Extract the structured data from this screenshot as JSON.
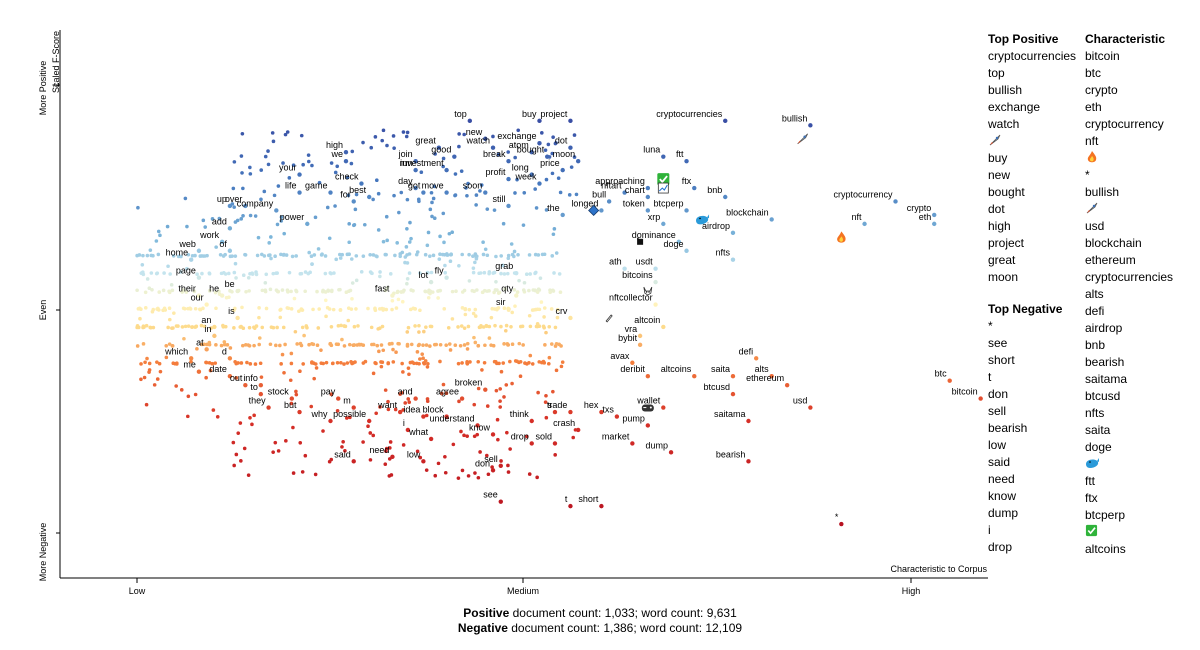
{
  "chart_data": {
    "type": "scatter",
    "title": "",
    "y_axis": {
      "label": "Scaled F-Score",
      "ticks": [
        "More Positive",
        "Even",
        "More Negative"
      ],
      "top_value": "1"
    },
    "x_axis": {
      "label": "Characteristic to Corpus",
      "ticks": [
        "Low",
        "Medium",
        "High"
      ]
    },
    "xlim": [
      0,
      1
    ],
    "ylim": [
      0,
      1
    ],
    "labeled_terms": [
      {
        "term": "top",
        "x": 0.43,
        "y": 0.92
      },
      {
        "term": "buy",
        "x": 0.52,
        "y": 0.92
      },
      {
        "term": "project",
        "x": 0.56,
        "y": 0.92
      },
      {
        "term": "new",
        "x": 0.45,
        "y": 0.88
      },
      {
        "term": "exchange",
        "x": 0.52,
        "y": 0.87
      },
      {
        "term": "watch",
        "x": 0.46,
        "y": 0.86
      },
      {
        "term": "dot",
        "x": 0.56,
        "y": 0.86
      },
      {
        "term": "atom",
        "x": 0.51,
        "y": 0.85
      },
      {
        "term": "bought",
        "x": 0.53,
        "y": 0.84
      },
      {
        "term": "great",
        "x": 0.39,
        "y": 0.86
      },
      {
        "term": "high",
        "x": 0.27,
        "y": 0.85
      },
      {
        "term": "good",
        "x": 0.41,
        "y": 0.84
      },
      {
        "term": "join",
        "x": 0.36,
        "y": 0.83
      },
      {
        "term": "we",
        "x": 0.27,
        "y": 0.83
      },
      {
        "term": "break",
        "x": 0.48,
        "y": 0.83
      },
      {
        "term": "moon",
        "x": 0.57,
        "y": 0.83
      },
      {
        "term": "investment",
        "x": 0.4,
        "y": 0.81
      },
      {
        "term": "run",
        "x": 0.36,
        "y": 0.81
      },
      {
        "term": "long",
        "x": 0.51,
        "y": 0.8
      },
      {
        "term": "price",
        "x": 0.55,
        "y": 0.81
      },
      {
        "term": "your",
        "x": 0.21,
        "y": 0.8
      },
      {
        "term": "profit",
        "x": 0.48,
        "y": 0.79
      },
      {
        "term": "check",
        "x": 0.29,
        "y": 0.78
      },
      {
        "term": "week",
        "x": 0.52,
        "y": 0.78
      },
      {
        "term": "life",
        "x": 0.21,
        "y": 0.76
      },
      {
        "term": "game",
        "x": 0.25,
        "y": 0.76
      },
      {
        "term": "day",
        "x": 0.36,
        "y": 0.77
      },
      {
        "term": "got",
        "x": 0.37,
        "y": 0.76
      },
      {
        "term": "move",
        "x": 0.4,
        "y": 0.76
      },
      {
        "term": "soon",
        "x": 0.45,
        "y": 0.76
      },
      {
        "term": "best",
        "x": 0.3,
        "y": 0.75
      },
      {
        "term": "for",
        "x": 0.28,
        "y": 0.74
      },
      {
        "term": "still",
        "x": 0.48,
        "y": 0.73
      },
      {
        "term": "up",
        "x": 0.12,
        "y": 0.73
      },
      {
        "term": "over",
        "x": 0.14,
        "y": 0.73
      },
      {
        "term": "company",
        "x": 0.18,
        "y": 0.72
      },
      {
        "term": "the",
        "x": 0.55,
        "y": 0.71
      },
      {
        "term": "power",
        "x": 0.22,
        "y": 0.69
      },
      {
        "term": "add",
        "x": 0.12,
        "y": 0.68
      },
      {
        "term": "work",
        "x": 0.11,
        "y": 0.65
      },
      {
        "term": "of",
        "x": 0.12,
        "y": 0.63
      },
      {
        "term": "web",
        "x": 0.08,
        "y": 0.63
      },
      {
        "term": "home",
        "x": 0.07,
        "y": 0.61
      },
      {
        "term": "page",
        "x": 0.08,
        "y": 0.57
      },
      {
        "term": "fly",
        "x": 0.4,
        "y": 0.57
      },
      {
        "term": "lot",
        "x": 0.38,
        "y": 0.56
      },
      {
        "term": "grab",
        "x": 0.49,
        "y": 0.58
      },
      {
        "term": "their",
        "x": 0.08,
        "y": 0.53
      },
      {
        "term": "he",
        "x": 0.11,
        "y": 0.53
      },
      {
        "term": "be",
        "x": 0.13,
        "y": 0.54
      },
      {
        "term": "fast",
        "x": 0.33,
        "y": 0.53
      },
      {
        "term": "qty",
        "x": 0.49,
        "y": 0.53
      },
      {
        "term": "our",
        "x": 0.09,
        "y": 0.51
      },
      {
        "term": "sir",
        "x": 0.48,
        "y": 0.5
      },
      {
        "term": "crv",
        "x": 0.56,
        "y": 0.48
      },
      {
        "term": "is",
        "x": 0.13,
        "y": 0.48
      },
      {
        "term": "an",
        "x": 0.1,
        "y": 0.46
      },
      {
        "term": "in",
        "x": 0.1,
        "y": 0.44
      },
      {
        "term": "at",
        "x": 0.09,
        "y": 0.41
      },
      {
        "term": "which",
        "x": 0.07,
        "y": 0.39
      },
      {
        "term": "d",
        "x": 0.12,
        "y": 0.39
      },
      {
        "term": "me",
        "x": 0.08,
        "y": 0.36
      },
      {
        "term": "date",
        "x": 0.12,
        "y": 0.35
      },
      {
        "term": "info",
        "x": 0.16,
        "y": 0.33
      },
      {
        "term": "out",
        "x": 0.14,
        "y": 0.33
      },
      {
        "term": "to",
        "x": 0.16,
        "y": 0.31
      },
      {
        "term": "stock",
        "x": 0.2,
        "y": 0.3
      },
      {
        "term": "pay",
        "x": 0.26,
        "y": 0.3
      },
      {
        "term": "they",
        "x": 0.17,
        "y": 0.28
      },
      {
        "term": "but",
        "x": 0.21,
        "y": 0.27
      },
      {
        "term": "m",
        "x": 0.28,
        "y": 0.28
      },
      {
        "term": "and",
        "x": 0.36,
        "y": 0.3
      },
      {
        "term": "agree",
        "x": 0.42,
        "y": 0.3
      },
      {
        "term": "broken",
        "x": 0.45,
        "y": 0.32
      },
      {
        "term": "want",
        "x": 0.34,
        "y": 0.27
      },
      {
        "term": "idea",
        "x": 0.37,
        "y": 0.26
      },
      {
        "term": "block",
        "x": 0.4,
        "y": 0.26
      },
      {
        "term": "why",
        "x": 0.25,
        "y": 0.25
      },
      {
        "term": "possible",
        "x": 0.3,
        "y": 0.25
      },
      {
        "term": "understand",
        "x": 0.44,
        "y": 0.24
      },
      {
        "term": "think",
        "x": 0.51,
        "y": 0.25
      },
      {
        "term": "s",
        "x": 0.54,
        "y": 0.27
      },
      {
        "term": "trade",
        "x": 0.56,
        "y": 0.27
      },
      {
        "term": "hex",
        "x": 0.6,
        "y": 0.27
      },
      {
        "term": "txs",
        "x": 0.62,
        "y": 0.26
      },
      {
        "term": "i",
        "x": 0.35,
        "y": 0.23
      },
      {
        "term": "know",
        "x": 0.46,
        "y": 0.22
      },
      {
        "term": "what",
        "x": 0.38,
        "y": 0.21
      },
      {
        "term": "drop",
        "x": 0.51,
        "y": 0.2
      },
      {
        "term": "sold",
        "x": 0.54,
        "y": 0.2
      },
      {
        "term": "crash",
        "x": 0.57,
        "y": 0.23
      },
      {
        "term": "pump",
        "x": 0.66,
        "y": 0.24
      },
      {
        "term": "market",
        "x": 0.64,
        "y": 0.2
      },
      {
        "term": "dump",
        "x": 0.69,
        "y": 0.18
      },
      {
        "term": "need",
        "x": 0.33,
        "y": 0.17
      },
      {
        "term": "said",
        "x": 0.28,
        "y": 0.16
      },
      {
        "term": "low",
        "x": 0.37,
        "y": 0.16
      },
      {
        "term": "sell",
        "x": 0.47,
        "y": 0.15
      },
      {
        "term": "don",
        "x": 0.46,
        "y": 0.14
      },
      {
        "term": "see",
        "x": 0.47,
        "y": 0.07
      },
      {
        "term": "t",
        "x": 0.56,
        "y": 0.06
      },
      {
        "term": "short",
        "x": 0.6,
        "y": 0.06
      },
      {
        "term": "bearish",
        "x": 0.79,
        "y": 0.16
      },
      {
        "term": "cryptocurrencies",
        "x": 0.76,
        "y": 0.92
      },
      {
        "term": "bullish",
        "x": 0.87,
        "y": 0.91
      },
      {
        "term": "luna",
        "x": 0.68,
        "y": 0.84
      },
      {
        "term": "ftt",
        "x": 0.71,
        "y": 0.83
      },
      {
        "term": "approaching",
        "x": 0.66,
        "y": 0.77
      },
      {
        "term": "ftx",
        "x": 0.72,
        "y": 0.77
      },
      {
        "term": "nftart",
        "x": 0.63,
        "y": 0.76
      },
      {
        "term": "chart",
        "x": 0.66,
        "y": 0.75
      },
      {
        "term": "bnb",
        "x": 0.76,
        "y": 0.75
      },
      {
        "term": "bull",
        "x": 0.61,
        "y": 0.74
      },
      {
        "term": "longed",
        "x": 0.6,
        "y": 0.72
      },
      {
        "term": "token",
        "x": 0.66,
        "y": 0.72
      },
      {
        "term": "btcperp",
        "x": 0.71,
        "y": 0.72
      },
      {
        "term": "blockchain",
        "x": 0.82,
        "y": 0.7
      },
      {
        "term": "xrp",
        "x": 0.68,
        "y": 0.69
      },
      {
        "term": "airdrop",
        "x": 0.77,
        "y": 0.67
      },
      {
        "term": "dominance",
        "x": 0.7,
        "y": 0.65
      },
      {
        "term": "doge",
        "x": 0.71,
        "y": 0.63
      },
      {
        "term": "nfts",
        "x": 0.77,
        "y": 0.61
      },
      {
        "term": "ath",
        "x": 0.63,
        "y": 0.59
      },
      {
        "term": "usdt",
        "x": 0.67,
        "y": 0.59
      },
      {
        "term": "bitcoins",
        "x": 0.67,
        "y": 0.56
      },
      {
        "term": "nftcollector",
        "x": 0.67,
        "y": 0.51
      },
      {
        "term": "altcoin",
        "x": 0.68,
        "y": 0.46
      },
      {
        "term": "vra",
        "x": 0.65,
        "y": 0.44
      },
      {
        "term": "bybit",
        "x": 0.65,
        "y": 0.42
      },
      {
        "term": "defi",
        "x": 0.8,
        "y": 0.39
      },
      {
        "term": "avax",
        "x": 0.64,
        "y": 0.38
      },
      {
        "term": "deribit",
        "x": 0.66,
        "y": 0.35
      },
      {
        "term": "altcoins",
        "x": 0.72,
        "y": 0.35
      },
      {
        "term": "saita",
        "x": 0.77,
        "y": 0.35
      },
      {
        "term": "alts",
        "x": 0.82,
        "y": 0.35
      },
      {
        "term": "ethereum",
        "x": 0.84,
        "y": 0.33
      },
      {
        "term": "btcusd",
        "x": 0.77,
        "y": 0.31
      },
      {
        "term": "wallet",
        "x": 0.68,
        "y": 0.28
      },
      {
        "term": "usd",
        "x": 0.87,
        "y": 0.28
      },
      {
        "term": "saitama",
        "x": 0.79,
        "y": 0.25
      },
      {
        "term": "cryptocurrency",
        "x": 0.98,
        "y": 0.74
      },
      {
        "term": "crypto",
        "x": 1.03,
        "y": 0.71
      },
      {
        "term": "eth",
        "x": 1.03,
        "y": 0.69
      },
      {
        "term": "nft",
        "x": 0.94,
        "y": 0.69
      },
      {
        "term": "btc",
        "x": 1.05,
        "y": 0.34
      },
      {
        "term": "bitcoin",
        "x": 1.09,
        "y": 0.3
      },
      {
        "term": "*",
        "x": 0.91,
        "y": 0.02
      }
    ],
    "emoji_points": [
      {
        "icon": "rocket-icon",
        "x": 0.86,
        "y": 0.88
      },
      {
        "icon": "fire-icon",
        "x": 0.91,
        "y": 0.66
      },
      {
        "icon": "check-icon",
        "x": 0.68,
        "y": 0.79
      },
      {
        "icon": "chart-icon",
        "x": 0.68,
        "y": 0.77
      },
      {
        "icon": "whale-icon",
        "x": 0.73,
        "y": 0.7
      },
      {
        "icon": "gem-icon",
        "x": 0.59,
        "y": 0.72
      },
      {
        "icon": "hand-icon",
        "x": 0.65,
        "y": 0.65
      },
      {
        "icon": "fox-icon",
        "x": 0.66,
        "y": 0.54
      },
      {
        "icon": "gamepad-icon",
        "x": 0.66,
        "y": 0.28
      },
      {
        "icon": "pen-icon",
        "x": 0.61,
        "y": 0.48
      }
    ],
    "top_positive": {
      "heading": "Top Positive",
      "items": [
        "cryptocurrencies",
        "top",
        "bullish",
        "exchange",
        "watch",
        "rocket",
        "buy",
        "new",
        "bought",
        "dot",
        "high",
        "project",
        "great",
        "moon"
      ]
    },
    "top_negative": {
      "heading": "Top Negative",
      "items": [
        "*",
        "see",
        "short",
        "t",
        "don",
        "sell",
        "bearish",
        "low",
        "said",
        "need",
        "know",
        "dump",
        "i",
        "drop"
      ]
    },
    "characteristic": {
      "heading": "Characteristic",
      "items": [
        "bitcoin",
        "btc",
        "crypto",
        "eth",
        "cryptocurrency",
        "nft",
        "fire",
        "*",
        "bullish",
        "rocket",
        "usd",
        "blockchain",
        "ethereum",
        "cryptocurrencies",
        "alts",
        "defi",
        "airdrop",
        "bnb",
        "bearish",
        "saitama",
        "btcusd",
        "nfts",
        "saita",
        "doge",
        "whale",
        "ftt",
        "ftx",
        "btcperp",
        "check",
        "altcoins"
      ]
    },
    "colors": {
      "positive": "#3b4cc0",
      "neutral": "#fff5c0",
      "negative": "#c1171d"
    }
  },
  "footer": {
    "pos_label": "Positive",
    "pos_text": " document count: 1,033; word count: 9,631",
    "neg_label": "Negative",
    "neg_text": " document count: 1,386; word count: 12,109"
  }
}
